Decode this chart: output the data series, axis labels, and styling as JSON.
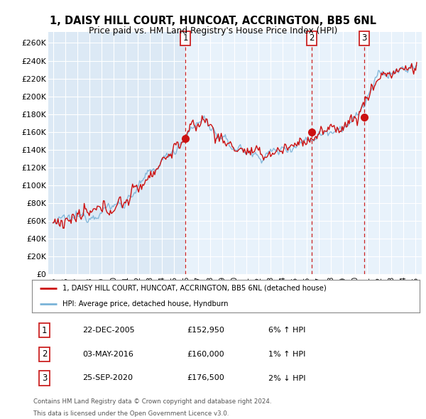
{
  "title_line1": "1, DAISY HILL COURT, HUNCOAT, ACCRINGTON, BB5 6NL",
  "title_line2": "Price paid vs. HM Land Registry's House Price Index (HPI)",
  "background_color": "#dce9f5",
  "shaded_color": "#e8f2fb",
  "red_line_label": "1, DAISY HILL COURT, HUNCOAT, ACCRINGTON, BB5 6NL (detached house)",
  "blue_line_label": "HPI: Average price, detached house, Hyndburn",
  "sales": [
    {
      "num": 1,
      "date": "22-DEC-2005",
      "price": 152950,
      "pct": "6%",
      "dir": "↑",
      "x": 2005.97
    },
    {
      "num": 2,
      "date": "03-MAY-2016",
      "price": 160000,
      "pct": "1%",
      "dir": "↑",
      "x": 2016.38
    },
    {
      "num": 3,
      "date": "25-SEP-2020",
      "price": 176500,
      "pct": "2%",
      "dir": "↓",
      "x": 2020.73
    }
  ],
  "footer_line1": "Contains HM Land Registry data © Crown copyright and database right 2024.",
  "footer_line2": "This data is licensed under the Open Government Licence v3.0.",
  "yticks": [
    0,
    20000,
    40000,
    60000,
    80000,
    100000,
    120000,
    140000,
    160000,
    180000,
    200000,
    220000,
    240000,
    260000
  ],
  "ylim": [
    0,
    272000
  ],
  "xlim_start": 1994.6,
  "xlim_end": 2025.5
}
